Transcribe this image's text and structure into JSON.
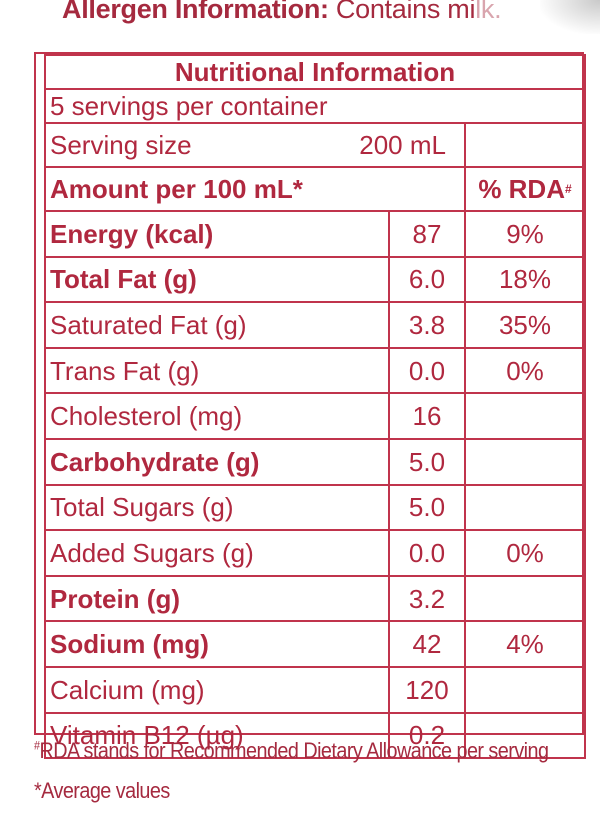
{
  "allergen": {
    "label": "Allergen Information:",
    "text": "Contains mi",
    "faded": "lk."
  },
  "panel": {
    "title": "Nutritional Information",
    "servings": "5 servings per container",
    "serving_size_label": "Serving size",
    "serving_size_value": "200 mL",
    "amount_header": "Amount per 100 mL*",
    "rda_header": "% RDA",
    "rda_header_mark": "#",
    "rows": [
      {
        "name": "Energy (kcal)",
        "value": "87",
        "rda": "9%",
        "bold": true
      },
      {
        "name": "Total Fat (g)",
        "value": "6.0",
        "rda": "18%",
        "bold": true
      },
      {
        "name": "Saturated Fat (g)",
        "value": "3.8",
        "rda": "35%",
        "bold": false
      },
      {
        "name": "Trans Fat (g)",
        "value": "0.0",
        "rda": "0%",
        "bold": false
      },
      {
        "name": "Cholesterol (mg)",
        "value": "16",
        "rda": "",
        "bold": false
      },
      {
        "name": "Carbohydrate (g)",
        "value": "5.0",
        "rda": "",
        "bold": true
      },
      {
        "name": "Total Sugars (g)",
        "value": "5.0",
        "rda": "",
        "bold": false
      },
      {
        "name": "Added Sugars (g)",
        "value": "0.0",
        "rda": "0%",
        "bold": false
      },
      {
        "name": "Protein (g)",
        "value": "3.2",
        "rda": "",
        "bold": true
      },
      {
        "name": "Sodium (mg)",
        "value": "42",
        "rda": "4%",
        "bold": true
      },
      {
        "name": "Calcium (mg)",
        "value": "120",
        "rda": "",
        "bold": false
      },
      {
        "name": "Vitamin B12 (µg)",
        "value": "0.2",
        "rda": "",
        "bold": false
      }
    ]
  },
  "footnotes": {
    "rda_mark": "#",
    "rda_text": "RDA stands for Recommended Dietary Allowance per serving",
    "avg": "*Average values"
  },
  "colors": {
    "ink": "#b0283f",
    "border": "#c0344c"
  }
}
